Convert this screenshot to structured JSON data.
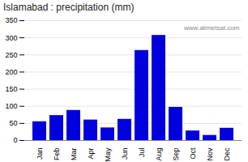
{
  "chart_data": {
    "type": "bar",
    "title": "Islamabad : precipitation (mm)",
    "categories": [
      "Jan",
      "Feb",
      "Mar",
      "Apr",
      "May",
      "Jun",
      "Jul",
      "Aug",
      "Sep",
      "Oct",
      "Nov",
      "Dec"
    ],
    "values": [
      55,
      73,
      88,
      60,
      37,
      62,
      263,
      307,
      97,
      28,
      15,
      36
    ],
    "color": "#0000dd",
    "ylim": [
      0,
      350
    ],
    "yticks": [
      0,
      50,
      100,
      150,
      200,
      250,
      300,
      350
    ],
    "grid": true,
    "annotations": [
      "www.allmetsat.com"
    ]
  }
}
